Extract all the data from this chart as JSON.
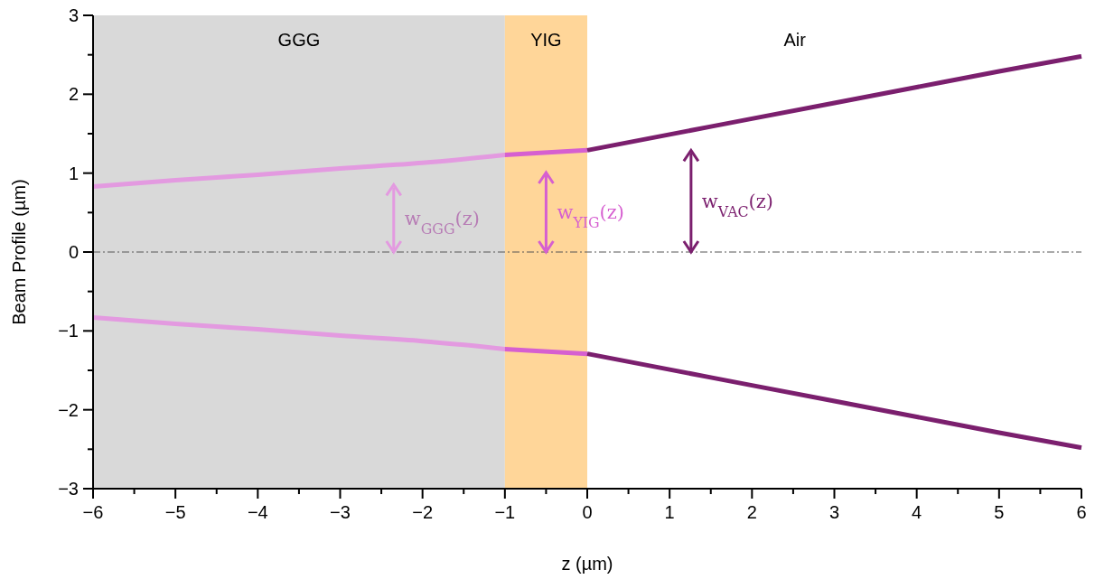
{
  "chart_data": {
    "type": "line",
    "xlabel": "z (µm)",
    "ylabel": "Beam Profile (µm)",
    "xlim": [
      -6,
      6
    ],
    "ylim": [
      -3,
      3
    ],
    "xticks": [
      -6,
      {
        "value": -5.5,
        "label": null
      },
      -5,
      {
        "value": -4.5,
        "label": null
      },
      -4,
      {
        "value": -3.5,
        "label": null
      },
      -3,
      {
        "value": -2.5,
        "label": null
      },
      -2,
      {
        "value": -1.5,
        "label": null
      },
      -1,
      {
        "value": -0.5,
        "label": null
      },
      0,
      {
        "value": 0.5,
        "label": null
      },
      1,
      {
        "value": 1.5,
        "label": null
      },
      2,
      {
        "value": 2.5,
        "label": null
      },
      3,
      {
        "value": 3.5,
        "label": null
      },
      4,
      {
        "value": 4.5,
        "label": null
      },
      5,
      {
        "value": 5.5,
        "label": null
      },
      6
    ],
    "yticks": [
      -3,
      {
        "value": -2.5,
        "label": null
      },
      -2,
      {
        "value": -1.5,
        "label": null
      },
      -1,
      {
        "value": -0.5,
        "label": null
      },
      0,
      {
        "value": 0.5,
        "label": null
      },
      1,
      {
        "value": 1.5,
        "label": null
      },
      2,
      {
        "value": 2.5,
        "label": null
      },
      3
    ],
    "grid": false,
    "line_style": "solid",
    "bands": [
      {
        "axis": "x",
        "from": -6,
        "to": -1,
        "label": "GGG",
        "color": "#d9d9d9"
      },
      {
        "axis": "x",
        "from": -1,
        "to": 0,
        "label": "YIG",
        "color": "#ffd699"
      }
    ],
    "ref_lines": [
      {
        "axis": "y",
        "value": 0,
        "color": "#555555",
        "line_style": "dashdot"
      }
    ],
    "series": [
      {
        "color": "#e39ae0",
        "x": [
          -6,
          -5,
          -4,
          -3,
          -2,
          -1
        ],
        "values": [
          0.83,
          0.91,
          0.98,
          1.06,
          1.13,
          1.23
        ]
      },
      {
        "color": "#e39ae0",
        "x": [
          -6,
          -5,
          -4,
          -3,
          -2,
          -1
        ],
        "values": [
          -0.83,
          -0.91,
          -0.98,
          -1.06,
          -1.13,
          -1.23
        ]
      },
      {
        "color": "#d65fd0",
        "x": [
          -1,
          0
        ],
        "values": [
          1.23,
          1.29
        ]
      },
      {
        "color": "#d65fd0",
        "x": [
          -1,
          0
        ],
        "values": [
          -1.23,
          -1.29
        ]
      },
      {
        "color": "#7b1f6e",
        "x": [
          0,
          1,
          2,
          3,
          4,
          5,
          6
        ],
        "values": [
          1.29,
          1.49,
          1.69,
          1.89,
          2.09,
          2.29,
          2.48
        ]
      },
      {
        "color": "#7b1f6e",
        "x": [
          0,
          1,
          2,
          3,
          4,
          5,
          6
        ],
        "values": [
          -1.29,
          -1.49,
          -1.69,
          -1.89,
          -2.09,
          -2.29,
          -2.48
        ]
      }
    ],
    "annotations": [
      "w$_{GGG}$(z)",
      "w$_{YIG}$(z)",
      "w$_{VAC}$(z)",
      "Air"
    ]
  }
}
